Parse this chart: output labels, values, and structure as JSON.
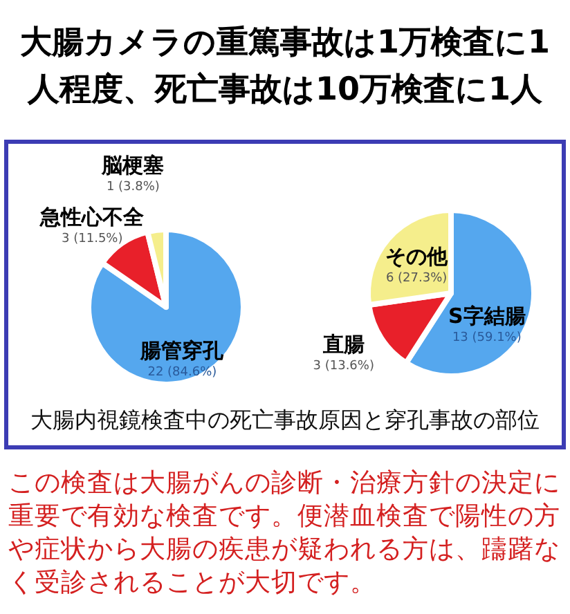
{
  "chart_data": [
    {
      "type": "pie",
      "title": "大腸カメラの重篤事故は1万検査に1人程度、死亡事故は10万検査に1人",
      "categories": [
        "腸管穿孔",
        "急性心不全",
        "脳梗塞"
      ],
      "values": [
        22,
        3,
        1
      ],
      "value_labels": [
        "22 (84.6%)",
        "3 (11.5%)",
        "1 (3.8%)"
      ],
      "colors": [
        "#55a7ee",
        "#e8202a",
        "#f5ee8c"
      ],
      "annotations": [
        "大腸内視鏡検査中の死亡事故原因と穿孔事故の部位",
        "この検査は大腸がんの診断・治療方針の決定に重要で有効な検査です。便潜血検査で陽性の方や症状から大腸の疾患が疑われる方は、躊躇なく受診されることが大切です。"
      ]
    },
    {
      "type": "pie",
      "categories": [
        "S字結腸",
        "直腸",
        "その他"
      ],
      "values": [
        13,
        3,
        6
      ],
      "value_labels": [
        "13 (59.1%)",
        "3 (13.6%)",
        "6 (27.3%)"
      ],
      "colors": [
        "#55a7ee",
        "#e8202a",
        "#f5ee8c"
      ]
    }
  ]
}
